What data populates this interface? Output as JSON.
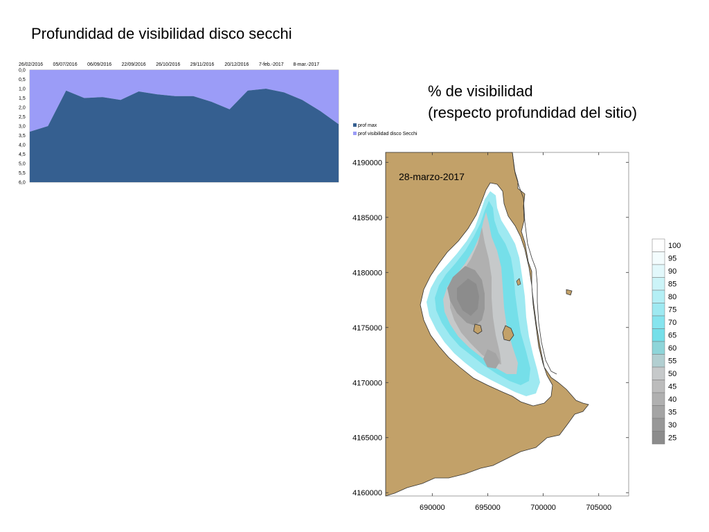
{
  "page": {
    "title": "Profundidad de visibilidad disco secchi",
    "map_title_line1": "% de visibilidad",
    "map_title_line2": "(respecto profundidad del sitio)"
  },
  "chart_data": [
    {
      "type": "area",
      "x": [
        "26/02/2016",
        "",
        "05/07/2016",
        "",
        "06/09/2016",
        "",
        "22/09/2016",
        "",
        "26/10/2016",
        "",
        "29/11/2016",
        "",
        "20/12/2016",
        "",
        "7-feb.-2017",
        "",
        "8-mar.-2017",
        ""
      ],
      "x_tick_labels": [
        "26/02/2016",
        "05/07/2016",
        "06/09/2016",
        "22/09/2016",
        "26/10/2016",
        "29/11/2016",
        "20/12/2016",
        "7-feb.-2017",
        "8-mar.-2017"
      ],
      "y_tick_labels": [
        "0,0",
        "0,5",
        "1,0",
        "1,5",
        "2,0",
        "2,5",
        "3,0",
        "3,5",
        "4,0",
        "4,5",
        "5,0",
        "5,5",
        "6,0"
      ],
      "ylim": [
        0,
        6
      ],
      "y_inverted": true,
      "series": [
        {
          "name": "prof max",
          "color": "#355f90",
          "values": [
            6,
            6,
            6,
            6,
            6,
            6,
            6,
            6,
            6,
            6,
            6,
            6,
            6,
            6,
            6,
            6,
            6,
            6
          ]
        },
        {
          "name": "prof visibilidad disco Secchi",
          "color": "#9b9cf7",
          "values": [
            3.3,
            3.0,
            1.1,
            1.5,
            1.45,
            1.6,
            1.15,
            1.3,
            1.4,
            1.4,
            1.7,
            2.1,
            1.1,
            1.0,
            1.2,
            1.6,
            2.2,
            2.9
          ]
        }
      ],
      "legend_position": "right"
    },
    {
      "type": "heatmap",
      "annotation": "28-marzo-2017",
      "x_tick_labels": [
        "690000",
        "695000",
        "700000",
        "705000"
      ],
      "x_ticks": [
        690000,
        695000,
        700000,
        705000
      ],
      "y_tick_labels": [
        "4160000",
        "4165000",
        "4170000",
        "4175000",
        "4180000",
        "4185000",
        "4190000"
      ],
      "y_ticks": [
        4160000,
        4165000,
        4170000,
        4175000,
        4180000,
        4185000,
        4190000
      ],
      "xlim": [
        685800,
        707700
      ],
      "ylim": [
        4159700,
        4190900
      ],
      "scale_labels": [
        "100",
        "95",
        "90",
        "85",
        "80",
        "75",
        "70",
        "65",
        "60",
        "55",
        "50",
        "45",
        "40",
        "35",
        "30",
        "25"
      ],
      "scale_colors": [
        "#ffffff",
        "#f3fcfd",
        "#e2f8fb",
        "#ccf4f8",
        "#b4eff5",
        "#9ee9f1",
        "#86e4ee",
        "#75dfe9",
        "#8ed5d9",
        "#b2cfd1",
        "#c6c9ca",
        "#bcbcbc",
        "#b0b0b0",
        "#a4a4a4",
        "#989898",
        "#8c8c8c"
      ],
      "land_color": "#c2a169"
    }
  ]
}
